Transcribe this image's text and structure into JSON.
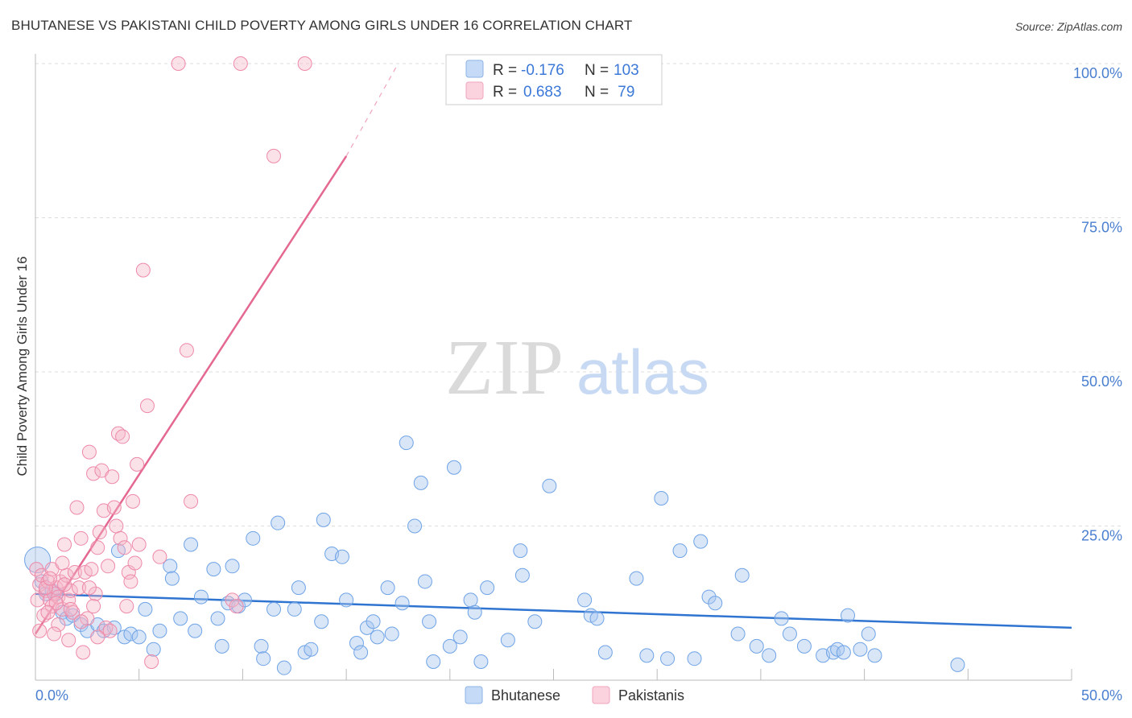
{
  "header": {
    "title": "BHUTANESE VS PAKISTANI CHILD POVERTY AMONG GIRLS UNDER 16 CORRELATION CHART",
    "source": "Source: ZipAtlas.com"
  },
  "watermark": {
    "zip": "ZIP",
    "atlas": "atlas"
  },
  "legend_box": {
    "rows": [
      {
        "r_label": "R = ",
        "r_value": "-0.176",
        "n_label": "N = ",
        "n_value": "103",
        "color": "#a9c8f0"
      },
      {
        "r_label": "R = ",
        "r_value": "0.683",
        "n_label": "N = ",
        "n_value": " 79",
        "color": "#f5b6c9"
      }
    ]
  },
  "bottom_legend": [
    {
      "label": "Bhutanese",
      "color": "#a9c8f0"
    },
    {
      "label": "Pakistanis",
      "color": "#f5b6c9"
    }
  ],
  "chart_data": {
    "type": "scatter",
    "ylabel": "Child Poverty Among Girls Under 16",
    "xlim": [
      0,
      50
    ],
    "ylim": [
      0,
      100
    ],
    "x_tick_labels": [
      "0.0%",
      "50.0%"
    ],
    "y_tick_labels": [
      "25.0%",
      "50.0%",
      "75.0%",
      "100.0%"
    ],
    "y_ticks": [
      25,
      50,
      75,
      100
    ],
    "grid": true,
    "series": [
      {
        "name": "Bhutanese",
        "color": "#6fa3e6",
        "trend": {
          "x0": 0,
          "y0": 14.0,
          "x1": 50,
          "y1": 8.5
        },
        "points": [
          [
            0.1,
            19.5
          ],
          [
            0.3,
            16
          ],
          [
            0.5,
            14
          ],
          [
            0.8,
            14.5
          ],
          [
            1,
            14
          ],
          [
            1.3,
            11
          ],
          [
            1.5,
            10
          ],
          [
            1.8,
            10.5
          ],
          [
            2.2,
            9
          ],
          [
            2.5,
            8
          ],
          [
            3,
            9
          ],
          [
            3.3,
            8
          ],
          [
            3.8,
            8.5
          ],
          [
            4,
            21
          ],
          [
            4.3,
            7
          ],
          [
            4.6,
            7.5
          ],
          [
            5,
            7
          ],
          [
            5.3,
            11.5
          ],
          [
            5.7,
            5
          ],
          [
            6,
            8
          ],
          [
            6.5,
            18.5
          ],
          [
            6.6,
            16.5
          ],
          [
            7,
            10
          ],
          [
            7.5,
            22
          ],
          [
            7.7,
            8
          ],
          [
            8,
            13.5
          ],
          [
            8.6,
            18
          ],
          [
            8.8,
            10
          ],
          [
            9,
            5.5
          ],
          [
            9.3,
            12.5
          ],
          [
            9.5,
            18.5
          ],
          [
            9.8,
            12
          ],
          [
            10.1,
            13
          ],
          [
            10.5,
            23
          ],
          [
            10.9,
            5.5
          ],
          [
            11,
            3.5
          ],
          [
            11.5,
            11.5
          ],
          [
            11.7,
            25.5
          ],
          [
            12,
            2
          ],
          [
            12.5,
            11.5
          ],
          [
            12.7,
            15
          ],
          [
            13,
            4.5
          ],
          [
            13.3,
            5
          ],
          [
            13.8,
            9.5
          ],
          [
            13.9,
            26
          ],
          [
            14.3,
            20.5
          ],
          [
            14.8,
            20
          ],
          [
            15,
            13
          ],
          [
            15.5,
            6
          ],
          [
            15.7,
            4.5
          ],
          [
            16,
            8.5
          ],
          [
            16.3,
            9.5
          ],
          [
            16.5,
            7
          ],
          [
            17,
            15
          ],
          [
            17.2,
            7.5
          ],
          [
            17.7,
            12.5
          ],
          [
            17.9,
            38.5
          ],
          [
            18.3,
            25
          ],
          [
            18.6,
            32
          ],
          [
            18.8,
            16
          ],
          [
            19,
            9.5
          ],
          [
            19.2,
            3
          ],
          [
            20,
            5.5
          ],
          [
            20.2,
            34.5
          ],
          [
            20.5,
            7
          ],
          [
            21,
            13
          ],
          [
            21.2,
            11
          ],
          [
            21.5,
            3
          ],
          [
            21.8,
            15
          ],
          [
            22.8,
            6.5
          ],
          [
            23.4,
            21
          ],
          [
            23.5,
            17
          ],
          [
            24.1,
            9.5
          ],
          [
            24.8,
            31.5
          ],
          [
            26.5,
            13
          ],
          [
            26.8,
            10.5
          ],
          [
            27.1,
            10
          ],
          [
            27.5,
            4.5
          ],
          [
            29,
            16.5
          ],
          [
            29.5,
            4
          ],
          [
            30.2,
            29.5
          ],
          [
            30.5,
            3.5
          ],
          [
            31.1,
            21
          ],
          [
            31.8,
            3.5
          ],
          [
            32.1,
            22.5
          ],
          [
            32.5,
            13.5
          ],
          [
            32.8,
            12.5
          ],
          [
            33.9,
            7.5
          ],
          [
            34.1,
            17
          ],
          [
            34.8,
            5.5
          ],
          [
            35.4,
            4
          ],
          [
            36,
            10
          ],
          [
            36.4,
            7.5
          ],
          [
            37.1,
            5.5
          ],
          [
            38,
            4
          ],
          [
            38.5,
            4.5
          ],
          [
            38.7,
            5
          ],
          [
            39,
            4.5
          ],
          [
            39.2,
            10.5
          ],
          [
            39.8,
            5
          ],
          [
            40.2,
            7.5
          ],
          [
            40.5,
            4
          ],
          [
            44.5,
            2.5
          ]
        ]
      },
      {
        "name": "Pakistanis",
        "color": "#ee89a9",
        "trend": {
          "x0": 0,
          "y0": 7.5,
          "x1": 15.0,
          "y1": 85.0,
          "x1d": 17.5,
          "y1d": 100.0
        },
        "points": [
          [
            0.05,
            18
          ],
          [
            0.1,
            13
          ],
          [
            0.2,
            15.5
          ],
          [
            0.3,
            17
          ],
          [
            0.5,
            14.5
          ],
          [
            0.6,
            16
          ],
          [
            0.7,
            13
          ],
          [
            0.8,
            12
          ],
          [
            0.9,
            14
          ],
          [
            1,
            15
          ],
          [
            1.1,
            13.5
          ],
          [
            1.2,
            16
          ],
          [
            1.3,
            11.5
          ],
          [
            1.4,
            22
          ],
          [
            1.5,
            17
          ],
          [
            1.6,
            13
          ],
          [
            1.7,
            14.5
          ],
          [
            1.8,
            11
          ],
          [
            1.9,
            17.5
          ],
          [
            2,
            28
          ],
          [
            2.1,
            15
          ],
          [
            2.2,
            23
          ],
          [
            2.3,
            4.5
          ],
          [
            2.4,
            17.5
          ],
          [
            2.5,
            10
          ],
          [
            2.6,
            37
          ],
          [
            2.7,
            18
          ],
          [
            2.8,
            33.5
          ],
          [
            2.9,
            14
          ],
          [
            3,
            21.5
          ],
          [
            3.1,
            24
          ],
          [
            3.2,
            34
          ],
          [
            3.3,
            27.5
          ],
          [
            3.4,
            8.5
          ],
          [
            3.5,
            18.5
          ],
          [
            3.6,
            8
          ],
          [
            3.7,
            33
          ],
          [
            3.8,
            28
          ],
          [
            3.9,
            25
          ],
          [
            4,
            40
          ],
          [
            4.1,
            23
          ],
          [
            4.2,
            39.5
          ],
          [
            4.3,
            21.5
          ],
          [
            4.4,
            12
          ],
          [
            4.5,
            17.5
          ],
          [
            4.6,
            16
          ],
          [
            4.7,
            29
          ],
          [
            4.8,
            19
          ],
          [
            4.9,
            35
          ],
          [
            5,
            22
          ],
          [
            5.2,
            66.5
          ],
          [
            5.4,
            44.5
          ],
          [
            5.6,
            3
          ],
          [
            6,
            20
          ],
          [
            6.9,
            100
          ],
          [
            7.3,
            53.5
          ],
          [
            7.5,
            29
          ],
          [
            9.5,
            13
          ],
          [
            9.7,
            12
          ],
          [
            9.9,
            100
          ],
          [
            11.5,
            85
          ],
          [
            13,
            100
          ],
          [
            0.4,
            10.5
          ],
          [
            0.8,
            18
          ],
          [
            1.0,
            12.5
          ],
          [
            1.6,
            6.5
          ],
          [
            2.2,
            9.5
          ],
          [
            0.2,
            8
          ],
          [
            0.6,
            11
          ],
          [
            1.4,
            15.5
          ],
          [
            2.8,
            12
          ],
          [
            3.0,
            7
          ],
          [
            1.1,
            9
          ],
          [
            0.9,
            7.5
          ],
          [
            1.3,
            19
          ],
          [
            2.6,
            15
          ],
          [
            1.7,
            11.5
          ],
          [
            0.5,
            15
          ],
          [
            0.7,
            16.5
          ]
        ]
      }
    ]
  }
}
